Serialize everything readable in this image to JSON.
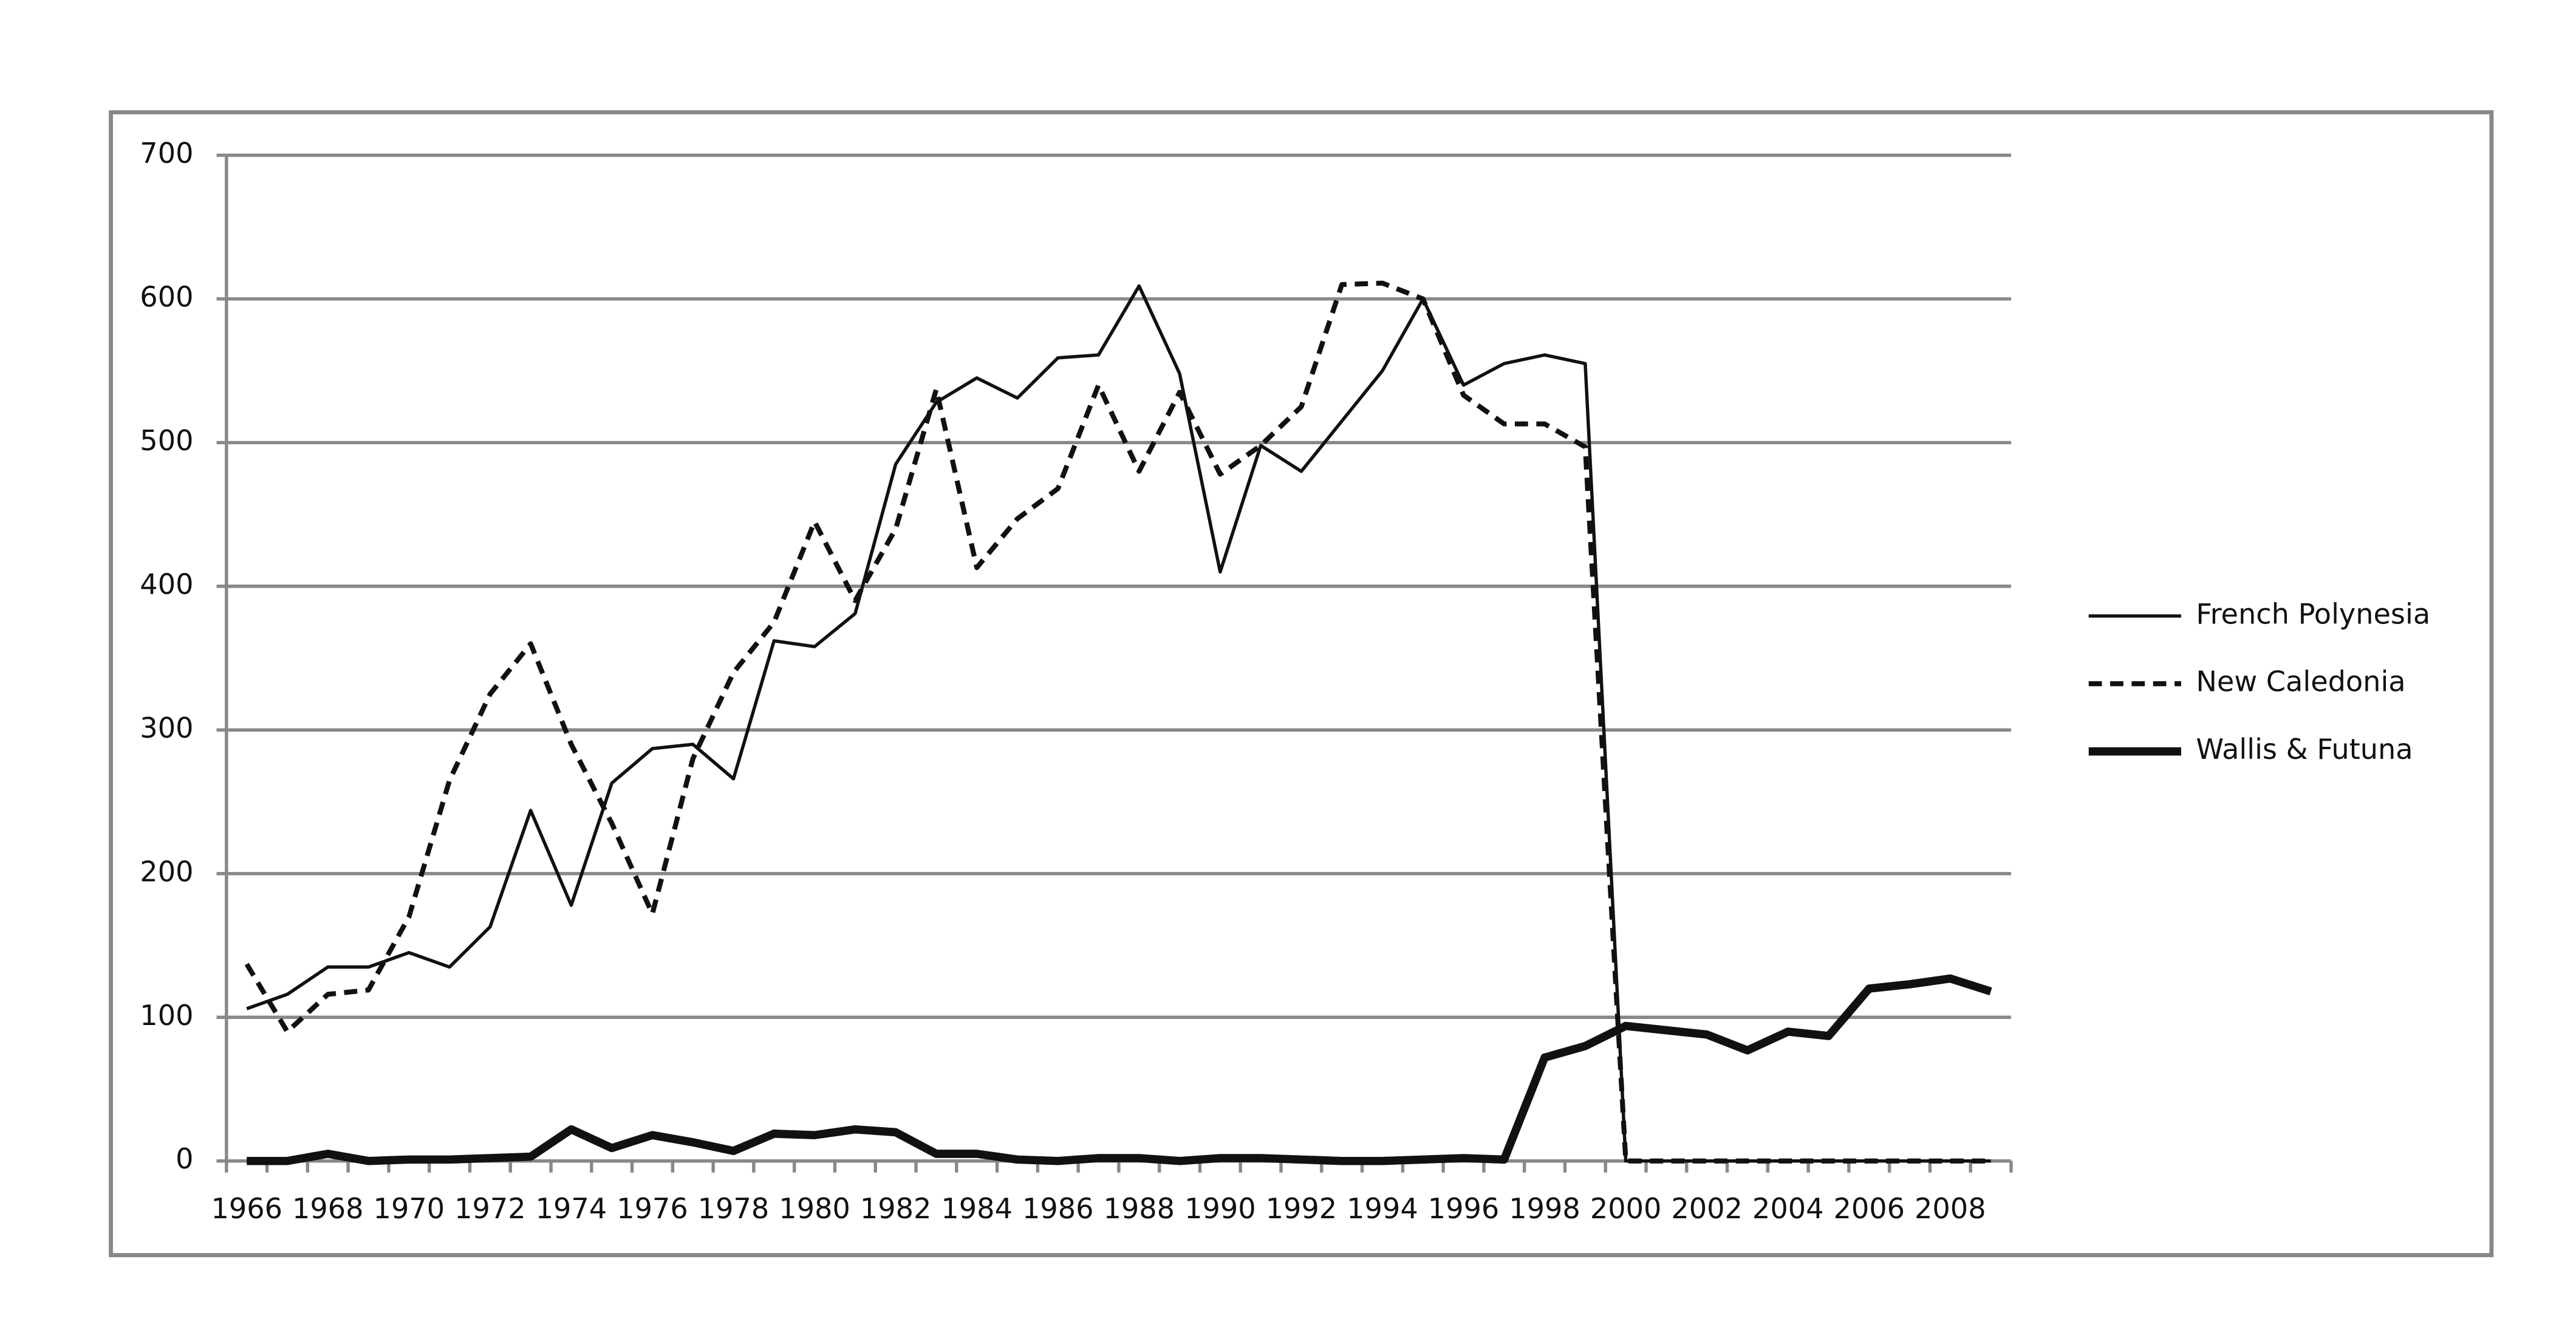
{
  "chart_data": {
    "type": "line",
    "categories": [
      "1966",
      null,
      "1968",
      null,
      "1970",
      null,
      "1972",
      null,
      "1974",
      null,
      "1976",
      null,
      "1978",
      null,
      "1980",
      null,
      "1982",
      null,
      "1984",
      null,
      "1986",
      null,
      "1988",
      null,
      "1990",
      null,
      "1992",
      null,
      "1994",
      null,
      "1996",
      null,
      "1998",
      null,
      "2000",
      null,
      "2002",
      null,
      "2004",
      null,
      "2006",
      null,
      "2008",
      null
    ],
    "series": [
      {
        "name": "French Polynesia",
        "color": "#111111",
        "style": "solid",
        "width": 2,
        "values": [
          106,
          116,
          135,
          135,
          145,
          135,
          163,
          244,
          178,
          263,
          287,
          290,
          266,
          362,
          358,
          381,
          485,
          528,
          545,
          531,
          559,
          561,
          609,
          548,
          410,
          498,
          480,
          515,
          550,
          600,
          540,
          555,
          561,
          555,
          0,
          0,
          0,
          0,
          0,
          0,
          0,
          0,
          0,
          0
        ]
      },
      {
        "name": "New Caledonia",
        "color": "#111111",
        "style": "dashed",
        "width": 3,
        "values": [
          137,
          90,
          116,
          119,
          170,
          265,
          325,
          360,
          290,
          235,
          172,
          280,
          340,
          375,
          445,
          390,
          440,
          537,
          413,
          447,
          468,
          540,
          480,
          535,
          478,
          498,
          525,
          610,
          611,
          600,
          533,
          513,
          513,
          497,
          0,
          0,
          0,
          0,
          0,
          0,
          0,
          0,
          0,
          0
        ]
      },
      {
        "name": "Wallis & Futuna",
        "color": "#111111",
        "style": "solid",
        "width": 5,
        "values": [
          0,
          0,
          5,
          0,
          1,
          1,
          2,
          3,
          22,
          9,
          18,
          13,
          7,
          19,
          18,
          22,
          20,
          5,
          5,
          1,
          0,
          2,
          2,
          0,
          2,
          2,
          1,
          0,
          0,
          1,
          2,
          1,
          72,
          80,
          94,
          91,
          88,
          77,
          90,
          87,
          120,
          123,
          127,
          118
        ]
      }
    ],
    "ylim": [
      0,
      700
    ],
    "yticks": [
      0,
      100,
      200,
      300,
      400,
      500,
      600,
      700
    ],
    "grid": true,
    "legend": "right"
  }
}
